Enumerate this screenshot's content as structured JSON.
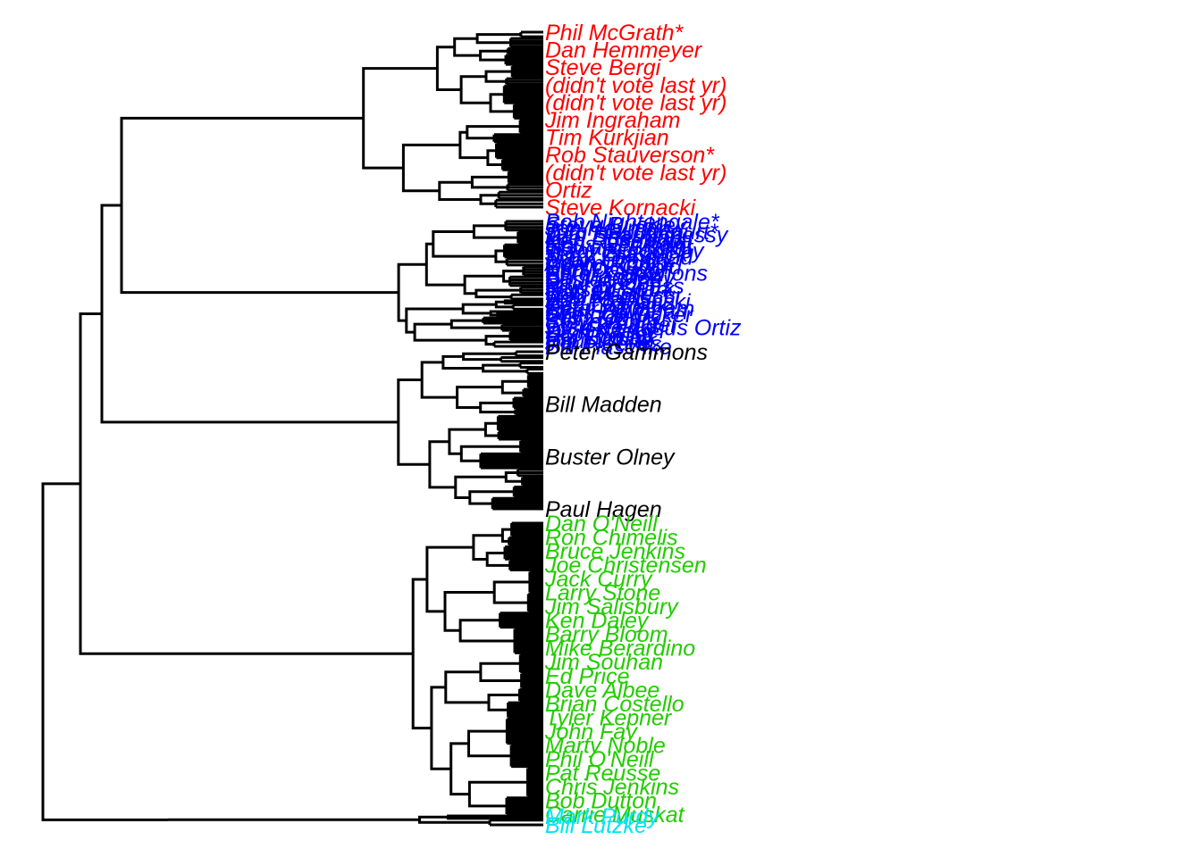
{
  "colors": {
    "red": "#ff0000",
    "blue": "#0000ff",
    "black": "#000000",
    "green": "#22cc00",
    "cyan": "#00e5ee",
    "branch": "#000000"
  },
  "clusters": [
    {
      "name": "cluster-red",
      "color_key": "red",
      "labels": [
        "Phil McGrath*",
        "Dan Hemmeyer",
        "Steve Bergi",
        "(didn't vote last yr)",
        "(didn't vote last yr)",
        "Jim Ingraham",
        "Tim Kurkjian",
        "Rob Stauverson*",
        "(didn't vote last yr)",
        "Ortiz",
        "Steve Kornacki"
      ]
    },
    {
      "name": "cluster-blue",
      "color_key": "blue",
      "labels": [
        "Bob Nightengale*",
        "Steve Buckley",
        "Jon Heyman",
        "Tom Haudricourt*",
        "Dan Shaughnessy",
        "Joel Sherman",
        "Ken Rosenthal",
        "Ross Newhan",
        "Howard Bryant",
        "Tracy Ringolsby",
        "Jerry Crasnick",
        "Mark Feinsand",
        "Evan Grant",
        "Adam Rubin",
        "Derrick Goold",
        "Ken Davidoff",
        "Peter Gammons",
        "Bill Madden",
        "Buster Olney",
        "Paul Hagen",
        "Murray Chass",
        "Jayson Stark",
        "Bob Elliott",
        "Tom Verducci",
        "Bob Klapisch",
        "Joe Posnanski",
        "Ken Gurnick",
        "Peter Abraham",
        "Mark Bowman",
        "Sheldon Ocker",
        "Phil Rogers",
        "Steve Politi",
        "Chuck Finder",
        "Jose de Jesus Ortiz",
        "Dick Kaegel",
        "Scott Miller",
        "Hal Bodley",
        "Paul White",
        "Jim Reeves",
        "Bill Plaschke"
      ]
    },
    {
      "name": "cluster-black",
      "color_key": "black",
      "labels": [
        "Peter Gammons",
        "Bill Madden",
        "Buster Olney",
        "Paul Hagen"
      ]
    },
    {
      "name": "cluster-green",
      "color_key": "green",
      "labels": [
        "Dan O'Neill",
        "Ron Chimelis",
        "Bruce Jenkins",
        "Joe Christensen",
        "Jack Curry",
        "Larry Stone",
        "Jim Salisbury",
        "Ken Daley",
        "Barry Bloom",
        "Mike Berardino",
        "Jim Souhan",
        "Ed Price",
        "Dave Albee",
        "Brian Costello",
        "Tyler Kepner",
        "John Fay",
        "Marty Noble",
        "Phil O'Neill",
        "Pat Reusse",
        "Chris Jenkins",
        "Bob Dutton",
        "Carrie Muskat"
      ]
    },
    {
      "name": "cluster-cyan",
      "color_key": "cyan",
      "labels": [
        "Mark Purdy",
        "Bill Lutzke"
      ]
    }
  ]
}
